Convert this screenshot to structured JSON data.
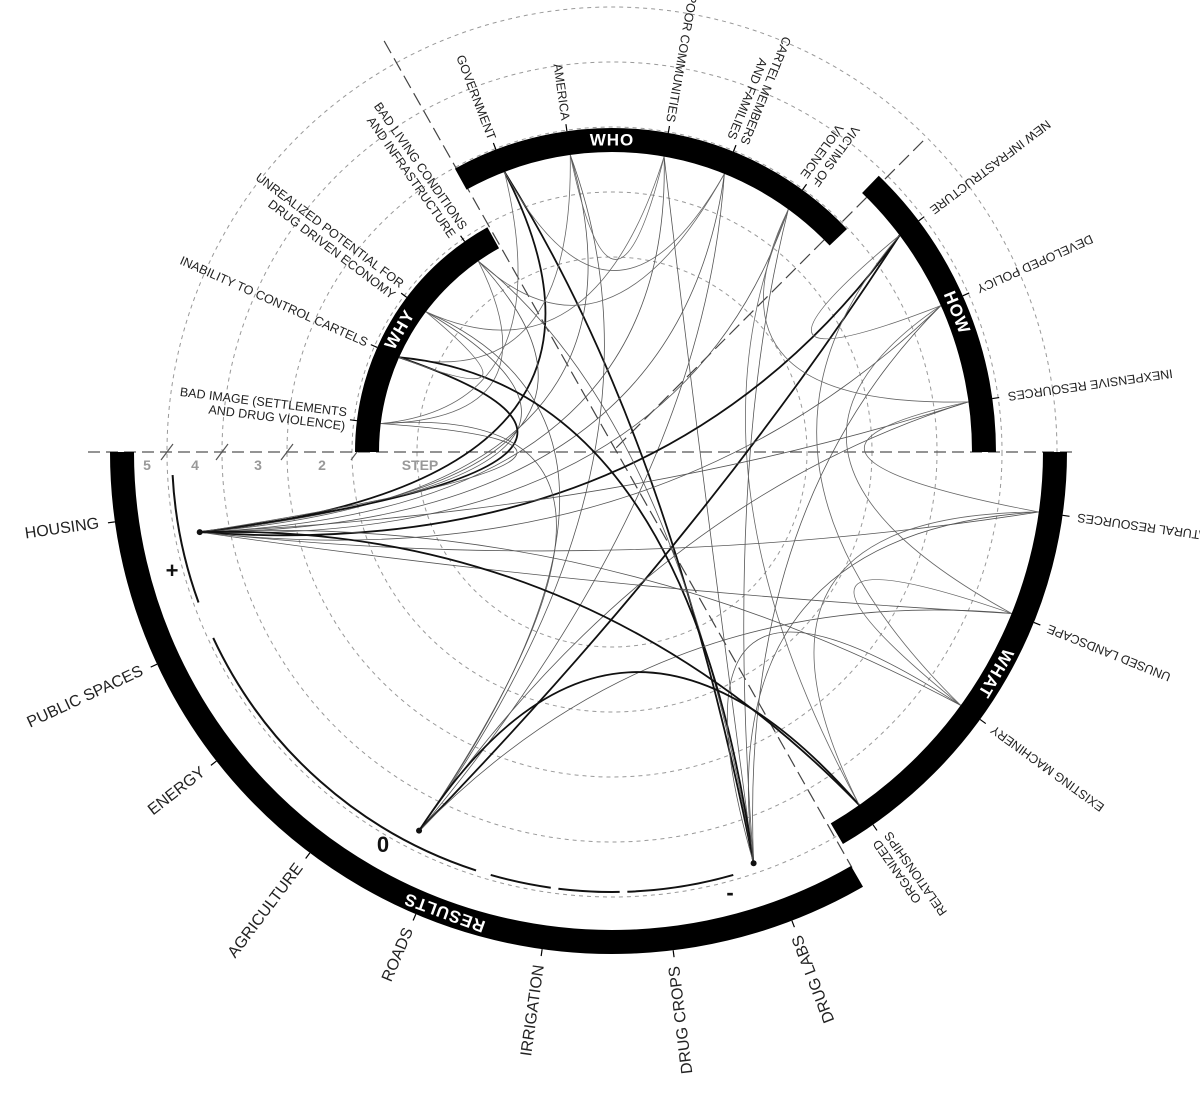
{
  "sections": [
    {
      "title": "WHO",
      "labels": [
        [
          "GOVERNMENT"
        ],
        [
          "AMERICA"
        ],
        [
          "POOR COMMUNITIES"
        ],
        [
          "CARTEL MEMBERS",
          "AND FAMILIES"
        ],
        [
          "VICTIMS OF",
          "VIOLENCE"
        ]
      ]
    },
    {
      "title": "HOW",
      "labels": [
        [
          "NEW INFRASTRUCTURE"
        ],
        [
          "DEVELOPED POLICY"
        ],
        [
          "INEXPENSIVE RESOURCES"
        ]
      ]
    },
    {
      "title": "WHY",
      "labels": [
        [
          "BAD LIVING CONDITIONS",
          "AND INFRASTRUCTURE"
        ],
        [
          "UNREALIZED POTENTIAL FOR",
          "DRUG DRIVEN ECONOMY"
        ],
        [
          "INABILITY TO CONTROL CARTELS"
        ],
        [
          "BAD IMAGE (SETTLEMENTS",
          "AND DRUG VIOLENCE)"
        ]
      ]
    },
    {
      "title": "WHAT",
      "labels": [
        [
          "NATURAL RESOURCES"
        ],
        [
          "UNUSED LANDSCAPE"
        ],
        [
          "EXISTING MACHINERY"
        ],
        [
          "ORGANIZED",
          "RELATIONSHIPS"
        ]
      ]
    },
    {
      "title": "RESULTS",
      "labels": [
        [
          "HOUSING"
        ],
        [
          "PUBLIC SPACES"
        ],
        [
          "ENERGY"
        ],
        [
          "AGRICULTURE"
        ],
        [
          "ROADS"
        ],
        [
          "IRRIGATION"
        ],
        [
          "DRUG CROPS"
        ],
        [
          "DRUG LABS"
        ]
      ]
    }
  ],
  "steps": [
    "5",
    "4",
    "3",
    "2",
    "STEP"
  ],
  "markers": [
    "+",
    "0",
    "-"
  ]
}
